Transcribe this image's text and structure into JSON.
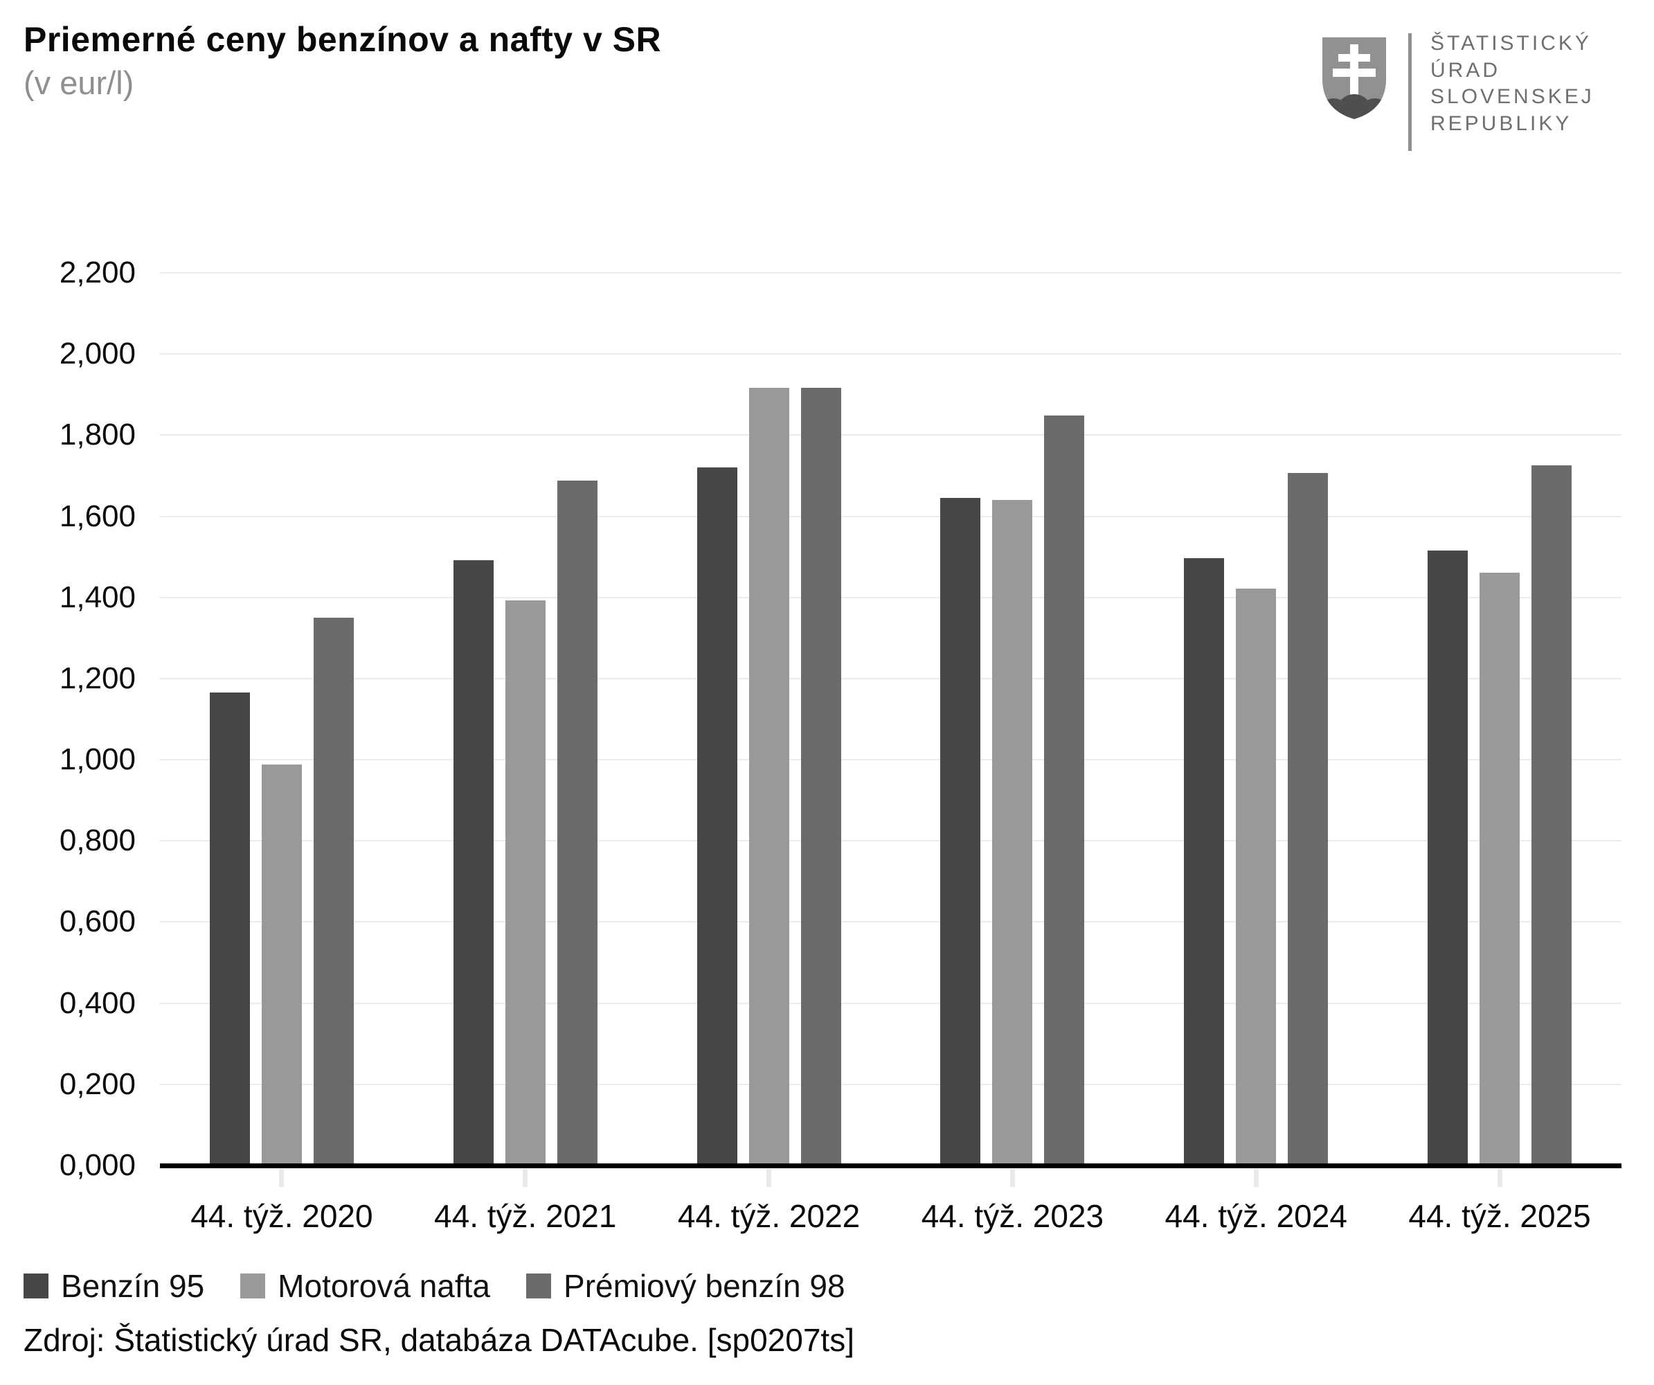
{
  "header": {
    "title": "Priemerné ceny benzínov a nafty v SR",
    "subtitle": "(v eur/l)"
  },
  "logo": {
    "emblem": "slovak-coat-of-arms",
    "lines": [
      "ŠTATISTICKÝ",
      "ÚRAD",
      "SLOVENSKEJ",
      "REPUBLIKY"
    ]
  },
  "source": "Zdroj: Štatistický úrad SR, databáza DATAcube. [sp0207ts]",
  "chart_data": {
    "type": "bar",
    "title": "Priemerné ceny benzínov a nafty v SR",
    "subtitle": "(v eur/l)",
    "ylabel": "eur/l",
    "xlabel": "",
    "categories": [
      "44. týž. 2020",
      "44. týž. 2021",
      "44. týž. 2022",
      "44. týž. 2023",
      "44. týž. 2024",
      "44. týž. 2025"
    ],
    "series": [
      {
        "name": "Benzín 95",
        "color": "#474747",
        "values": [
          1.166,
          1.491,
          1.72,
          1.646,
          1.496,
          1.516
        ]
      },
      {
        "name": "Motorová nafta",
        "color": "#999999",
        "values": [
          0.988,
          1.392,
          1.916,
          1.64,
          1.421,
          1.461
        ]
      },
      {
        "name": "Prémiový benzín 98",
        "color": "#6b6b6b",
        "values": [
          1.35,
          1.688,
          1.916,
          1.849,
          1.706,
          1.725
        ]
      }
    ],
    "ylim": [
      0,
      2.2
    ],
    "y_tick_step": 0.2,
    "y_ticks": [
      "0,000",
      "0,200",
      "0,400",
      "0,600",
      "0,800",
      "1,000",
      "1,200",
      "1,400",
      "1,600",
      "1,800",
      "2,000",
      "2,200"
    ],
    "grid": true,
    "legend_position": "bottom",
    "colors": {
      "gridline": "#ececec",
      "axis": "#000000",
      "tick": "#e9e9e9",
      "subtitle_text": "#8f8f8f",
      "logo_text": "#6f6f6f"
    }
  }
}
